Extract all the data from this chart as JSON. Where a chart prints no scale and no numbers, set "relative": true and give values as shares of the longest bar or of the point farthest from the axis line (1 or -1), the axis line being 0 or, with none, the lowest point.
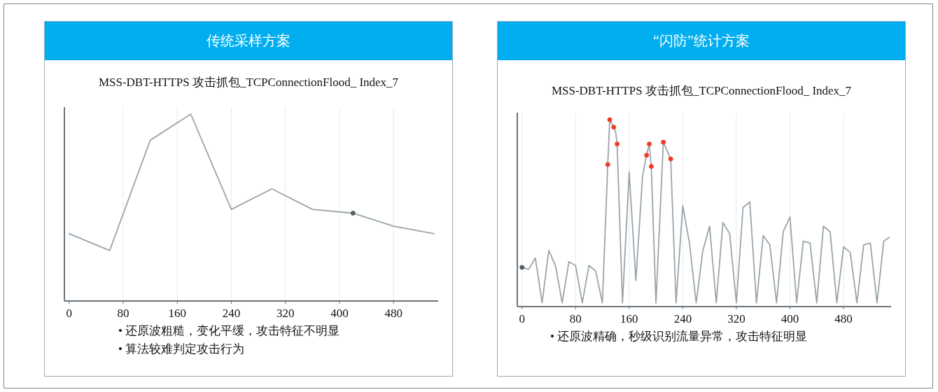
{
  "chart_data": [
    {
      "type": "line",
      "title": "传统采样方案",
      "subtitle": "MSS-DBT-HTTPS 攻击抓包_TCPConnectionFlood_ Index_7",
      "relative": true,
      "xlim": [
        -7,
        546
      ],
      "xticks": [
        0,
        80,
        160,
        240,
        320,
        400,
        480
      ],
      "grid": "x",
      "annotations": [
        "• 还原波粗糙，变化平缓，攻击特征不明显",
        "• 算法较难判定攻击行为"
      ],
      "series": [
        {
          "type": "line",
          "color": "#9aa5ab",
          "marker": "none",
          "x": [
            0,
            60,
            120,
            180,
            240,
            300,
            360,
            420,
            480,
            540
          ],
          "values": [
            0.36,
            0.27,
            0.86,
            1,
            0.49,
            0.6,
            0.49,
            0.47,
            0.4,
            0.36
          ]
        },
        {
          "type": "scatter",
          "color": "#555f66",
          "marker": "circle",
          "x": [
            420
          ],
          "values": [
            0.47
          ]
        }
      ]
    },
    {
      "type": "line",
      "title": "“闪防”统计方案",
      "subtitle": "MSS-DBT-HTTPS 攻击抓包_TCPConnectionFlood_ Index_7",
      "relative": true,
      "xlim": [
        -7,
        551
      ],
      "xticks": [
        0,
        80,
        160,
        240,
        320,
        400,
        480
      ],
      "grid": "x",
      "annotations": [
        "• 还原波精确，秒级识别流量异常，攻击特征明显"
      ],
      "series": [
        {
          "type": "line",
          "color": "#9aa5ab",
          "marker": "none",
          "x": [
            0,
            10,
            20,
            30,
            40,
            50,
            60,
            70,
            80,
            90,
            100,
            110,
            120,
            128,
            131,
            137,
            140,
            142,
            150,
            160,
            170,
            180,
            186,
            190,
            193,
            200,
            211,
            222,
            230,
            240,
            250,
            260,
            270,
            280,
            290,
            300,
            310,
            320,
            330,
            340,
            350,
            360,
            370,
            380,
            390,
            400,
            410,
            420,
            430,
            440,
            450,
            460,
            470,
            480,
            490,
            500,
            510,
            520,
            530,
            540,
            548
          ],
          "values": [
            0.21,
            0.2,
            0.26,
            0.02,
            0.3,
            0.22,
            0.02,
            0.24,
            0.22,
            0.02,
            0.22,
            0.19,
            0.02,
            0.76,
            1,
            0.96,
            0.93,
            0.87,
            0.02,
            0.72,
            0.14,
            0.7,
            0.81,
            0.87,
            0.75,
            0.02,
            0.88,
            0.79,
            0.02,
            0.54,
            0.34,
            0.02,
            0.3,
            0.43,
            0.02,
            0.45,
            0.39,
            0.02,
            0.53,
            0.56,
            0.02,
            0.38,
            0.33,
            0.02,
            0.4,
            0.48,
            0.02,
            0.35,
            0.34,
            0.02,
            0.43,
            0.4,
            0.02,
            0.32,
            0.29,
            0.02,
            0.33,
            0.34,
            0.02,
            0.35,
            0.37
          ]
        },
        {
          "type": "scatter",
          "color": "#f03c28",
          "marker": "circle",
          "x": [
            128,
            131,
            137,
            142,
            186,
            190,
            193,
            211,
            222
          ],
          "values": [
            0.76,
            1,
            0.96,
            0.87,
            0.81,
            0.87,
            0.75,
            0.88,
            0.79
          ]
        },
        {
          "type": "scatter",
          "color": "#555f66",
          "marker": "circle",
          "x": [
            0
          ],
          "values": [
            0.21
          ]
        }
      ]
    }
  ]
}
